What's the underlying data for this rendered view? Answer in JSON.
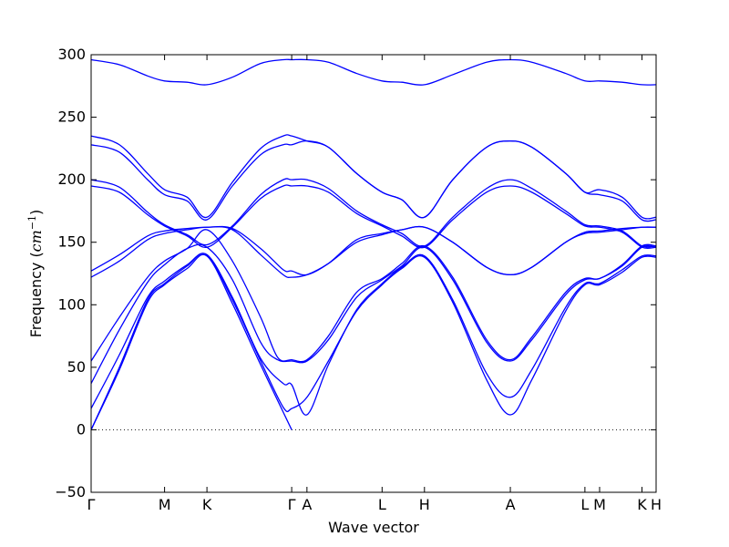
{
  "chart_data": {
    "type": "line",
    "title": "",
    "xlabel": "Wave vector",
    "ylabel_text": "Frequency (",
    "ylabel_unit_base": "cm",
    "ylabel_unit_exp": "−1",
    "ylabel_close": ")",
    "ylim": [
      -50,
      300
    ],
    "y_ticks": [
      -50,
      0,
      50,
      100,
      150,
      200,
      250,
      300
    ],
    "y_tick_labels": [
      "−50",
      "0",
      "50",
      "100",
      "150",
      "200",
      "250",
      "300"
    ],
    "x_ticks": [
      {
        "label": "Γ",
        "x": 0.0
      },
      {
        "label": "M",
        "x": 0.13
      },
      {
        "label": "K",
        "x": 0.205
      },
      {
        "label": "Γ",
        "x": 0.355
      },
      {
        "label": "A",
        "x": 0.382
      },
      {
        "label": "L",
        "x": 0.515
      },
      {
        "label": "H",
        "x": 0.59
      },
      {
        "label": "A",
        "x": 0.742
      },
      {
        "label": "L",
        "x": 0.874
      },
      {
        "label": "M",
        "x": 0.9
      },
      {
        "label": "K",
        "x": 0.975
      },
      {
        "label": "H",
        "x": 1.0
      }
    ],
    "xlim": [
      0,
      1
    ],
    "zero_line": true,
    "line_color": "#0000ff",
    "series": [
      {
        "points": [
          [
            0,
            0
          ],
          [
            0.05,
            48
          ],
          [
            0.1,
            102
          ],
          [
            0.13,
            116
          ],
          [
            0.17,
            129
          ],
          [
            0.205,
            139
          ],
          [
            0.25,
            101
          ],
          [
            0.3,
            52
          ],
          [
            0.355,
            0
          ]
        ]
      },
      {
        "points": [
          [
            0,
            0
          ],
          [
            0.05,
            50
          ],
          [
            0.1,
            104
          ],
          [
            0.13,
            117
          ],
          [
            0.17,
            131
          ],
          [
            0.205,
            140
          ],
          [
            0.25,
            104
          ],
          [
            0.3,
            55
          ],
          [
            0.34,
            18
          ],
          [
            0.355,
            17
          ],
          [
            0.382,
            26
          ],
          [
            0.42,
            55
          ],
          [
            0.47,
            95
          ],
          [
            0.515,
            116
          ],
          [
            0.55,
            129
          ],
          [
            0.59,
            138
          ],
          [
            0.64,
            102
          ],
          [
            0.7,
            40
          ],
          [
            0.742,
            12
          ],
          [
            0.78,
            40
          ],
          [
            0.84,
            95
          ],
          [
            0.874,
            116
          ],
          [
            0.9,
            116
          ],
          [
            0.94,
            126
          ],
          [
            0.975,
            138
          ],
          [
            1.0,
            138
          ]
        ]
      },
      {
        "points": [
          [
            0,
            17
          ],
          [
            0.05,
            60
          ],
          [
            0.1,
            106
          ],
          [
            0.13,
            119
          ],
          [
            0.17,
            132
          ],
          [
            0.205,
            140
          ],
          [
            0.25,
            106
          ],
          [
            0.3,
            57
          ],
          [
            0.34,
            37
          ],
          [
            0.355,
            36
          ],
          [
            0.382,
            12
          ],
          [
            0.42,
            52
          ],
          [
            0.47,
            96
          ],
          [
            0.515,
            117
          ],
          [
            0.55,
            130
          ],
          [
            0.59,
            139
          ],
          [
            0.64,
            104
          ],
          [
            0.7,
            45
          ],
          [
            0.742,
            26
          ],
          [
            0.78,
            48
          ],
          [
            0.84,
            98
          ],
          [
            0.874,
            117
          ],
          [
            0.9,
            117
          ],
          [
            0.94,
            128
          ],
          [
            0.975,
            139
          ],
          [
            1.0,
            139
          ]
        ]
      },
      {
        "points": [
          [
            0,
            37
          ],
          [
            0.05,
            80
          ],
          [
            0.1,
            118
          ],
          [
            0.13,
            132
          ],
          [
            0.17,
            145
          ],
          [
            0.205,
            146
          ],
          [
            0.25,
            120
          ],
          [
            0.3,
            70
          ],
          [
            0.33,
            56
          ],
          [
            0.355,
            55
          ],
          [
            0.382,
            55
          ],
          [
            0.42,
            72
          ],
          [
            0.47,
            106
          ],
          [
            0.515,
            120
          ],
          [
            0.55,
            131
          ],
          [
            0.59,
            146
          ],
          [
            0.64,
            120
          ],
          [
            0.7,
            70
          ],
          [
            0.742,
            55
          ],
          [
            0.78,
            72
          ],
          [
            0.84,
            108
          ],
          [
            0.874,
            120
          ],
          [
            0.9,
            121
          ],
          [
            0.94,
            131
          ],
          [
            0.975,
            146
          ],
          [
            1.0,
            146
          ]
        ]
      },
      {
        "points": [
          [
            0,
            55
          ],
          [
            0.05,
            90
          ],
          [
            0.1,
            122
          ],
          [
            0.13,
            135
          ],
          [
            0.17,
            145
          ],
          [
            0.205,
            160
          ],
          [
            0.25,
            135
          ],
          [
            0.3,
            90
          ],
          [
            0.33,
            58
          ],
          [
            0.355,
            56
          ],
          [
            0.382,
            56
          ],
          [
            0.42,
            75
          ],
          [
            0.47,
            110
          ],
          [
            0.515,
            121
          ],
          [
            0.55,
            133
          ],
          [
            0.59,
            147
          ],
          [
            0.64,
            122
          ],
          [
            0.7,
            72
          ],
          [
            0.742,
            56
          ],
          [
            0.78,
            74
          ],
          [
            0.84,
            110
          ],
          [
            0.874,
            121
          ],
          [
            0.9,
            121
          ],
          [
            0.94,
            132
          ],
          [
            0.975,
            147
          ],
          [
            1.0,
            147
          ]
        ]
      },
      {
        "points": [
          [
            0,
            122
          ],
          [
            0.05,
            135
          ],
          [
            0.1,
            152
          ],
          [
            0.13,
            157
          ],
          [
            0.17,
            160
          ],
          [
            0.205,
            162
          ],
          [
            0.25,
            160
          ],
          [
            0.3,
            140
          ],
          [
            0.34,
            124
          ],
          [
            0.355,
            122
          ],
          [
            0.382,
            124
          ],
          [
            0.42,
            133
          ],
          [
            0.47,
            150
          ],
          [
            0.515,
            156
          ],
          [
            0.55,
            160
          ],
          [
            0.59,
            162
          ],
          [
            0.64,
            150
          ],
          [
            0.7,
            130
          ],
          [
            0.742,
            124
          ],
          [
            0.78,
            130
          ],
          [
            0.84,
            150
          ],
          [
            0.874,
            157
          ],
          [
            0.9,
            158
          ],
          [
            0.94,
            160
          ],
          [
            0.975,
            162
          ],
          [
            1.0,
            162
          ]
        ]
      },
      {
        "points": [
          [
            0,
            127
          ],
          [
            0.05,
            140
          ],
          [
            0.1,
            155
          ],
          [
            0.13,
            159
          ],
          [
            0.17,
            161
          ],
          [
            0.205,
            162
          ],
          [
            0.25,
            161
          ],
          [
            0.3,
            145
          ],
          [
            0.34,
            128
          ],
          [
            0.355,
            127
          ],
          [
            0.382,
            124
          ],
          [
            0.42,
            133
          ],
          [
            0.47,
            152
          ],
          [
            0.515,
            157
          ],
          [
            0.55,
            160
          ],
          [
            0.59,
            162
          ],
          [
            0.64,
            150
          ],
          [
            0.7,
            130
          ],
          [
            0.742,
            124
          ],
          [
            0.78,
            130
          ],
          [
            0.84,
            150
          ],
          [
            0.874,
            158
          ],
          [
            0.9,
            159
          ],
          [
            0.94,
            161
          ],
          [
            0.975,
            162
          ],
          [
            1.0,
            162
          ]
        ]
      },
      {
        "points": [
          [
            0,
            195
          ],
          [
            0.05,
            190
          ],
          [
            0.1,
            172
          ],
          [
            0.13,
            163
          ],
          [
            0.17,
            155
          ],
          [
            0.205,
            146
          ],
          [
            0.25,
            162
          ],
          [
            0.3,
            185
          ],
          [
            0.34,
            195
          ],
          [
            0.355,
            195
          ],
          [
            0.382,
            195
          ],
          [
            0.42,
            190
          ],
          [
            0.47,
            173
          ],
          [
            0.515,
            163
          ],
          [
            0.55,
            155
          ],
          [
            0.59,
            146
          ],
          [
            0.64,
            168
          ],
          [
            0.7,
            190
          ],
          [
            0.742,
            195
          ],
          [
            0.78,
            190
          ],
          [
            0.84,
            173
          ],
          [
            0.874,
            163
          ],
          [
            0.9,
            162
          ],
          [
            0.94,
            158
          ],
          [
            0.975,
            146
          ],
          [
            1.0,
            146
          ]
        ]
      },
      {
        "points": [
          [
            0,
            200
          ],
          [
            0.05,
            194
          ],
          [
            0.1,
            174
          ],
          [
            0.13,
            164
          ],
          [
            0.17,
            156
          ],
          [
            0.205,
            148
          ],
          [
            0.25,
            163
          ],
          [
            0.3,
            188
          ],
          [
            0.34,
            200
          ],
          [
            0.355,
            200
          ],
          [
            0.382,
            200
          ],
          [
            0.42,
            193
          ],
          [
            0.47,
            175
          ],
          [
            0.515,
            164
          ],
          [
            0.55,
            157
          ],
          [
            0.59,
            147
          ],
          [
            0.64,
            170
          ],
          [
            0.7,
            193
          ],
          [
            0.742,
            200
          ],
          [
            0.78,
            193
          ],
          [
            0.84,
            175
          ],
          [
            0.874,
            164
          ],
          [
            0.9,
            163
          ],
          [
            0.94,
            159
          ],
          [
            0.975,
            147
          ],
          [
            1.0,
            147
          ]
        ]
      },
      {
        "points": [
          [
            0,
            228
          ],
          [
            0.05,
            222
          ],
          [
            0.1,
            200
          ],
          [
            0.13,
            188
          ],
          [
            0.17,
            183
          ],
          [
            0.205,
            168
          ],
          [
            0.25,
            195
          ],
          [
            0.3,
            220
          ],
          [
            0.34,
            228
          ],
          [
            0.355,
            228
          ],
          [
            0.382,
            231
          ],
          [
            0.42,
            226
          ],
          [
            0.47,
            205
          ],
          [
            0.515,
            190
          ],
          [
            0.55,
            184
          ],
          [
            0.59,
            170
          ],
          [
            0.64,
            200
          ],
          [
            0.7,
            226
          ],
          [
            0.742,
            231
          ],
          [
            0.78,
            226
          ],
          [
            0.84,
            205
          ],
          [
            0.874,
            190
          ],
          [
            0.9,
            192
          ],
          [
            0.94,
            186
          ],
          [
            0.975,
            170
          ],
          [
            1.0,
            170
          ]
        ]
      },
      {
        "points": [
          [
            0,
            235
          ],
          [
            0.05,
            228
          ],
          [
            0.1,
            205
          ],
          [
            0.13,
            192
          ],
          [
            0.17,
            186
          ],
          [
            0.205,
            170
          ],
          [
            0.25,
            198
          ],
          [
            0.3,
            225
          ],
          [
            0.34,
            235
          ],
          [
            0.355,
            235
          ],
          [
            0.382,
            231
          ],
          [
            0.42,
            226
          ],
          [
            0.47,
            205
          ],
          [
            0.515,
            190
          ],
          [
            0.55,
            184
          ],
          [
            0.59,
            170
          ],
          [
            0.64,
            200
          ],
          [
            0.7,
            226
          ],
          [
            0.742,
            231
          ],
          [
            0.78,
            226
          ],
          [
            0.84,
            205
          ],
          [
            0.874,
            190
          ],
          [
            0.9,
            188
          ],
          [
            0.94,
            183
          ],
          [
            0.975,
            168
          ],
          [
            1.0,
            168
          ]
        ]
      },
      {
        "points": [
          [
            0,
            296
          ],
          [
            0.05,
            292
          ],
          [
            0.1,
            283
          ],
          [
            0.13,
            279
          ],
          [
            0.17,
            278
          ],
          [
            0.205,
            276
          ],
          [
            0.25,
            282
          ],
          [
            0.3,
            293
          ],
          [
            0.34,
            296
          ],
          [
            0.355,
            296
          ],
          [
            0.382,
            296
          ],
          [
            0.42,
            294
          ],
          [
            0.47,
            285
          ],
          [
            0.515,
            279
          ],
          [
            0.55,
            278
          ],
          [
            0.59,
            276
          ],
          [
            0.64,
            284
          ],
          [
            0.7,
            294
          ],
          [
            0.742,
            296
          ],
          [
            0.78,
            294
          ],
          [
            0.84,
            285
          ],
          [
            0.874,
            279
          ],
          [
            0.9,
            279
          ],
          [
            0.94,
            278
          ],
          [
            0.975,
            276
          ],
          [
            1.0,
            276
          ]
        ]
      }
    ]
  }
}
